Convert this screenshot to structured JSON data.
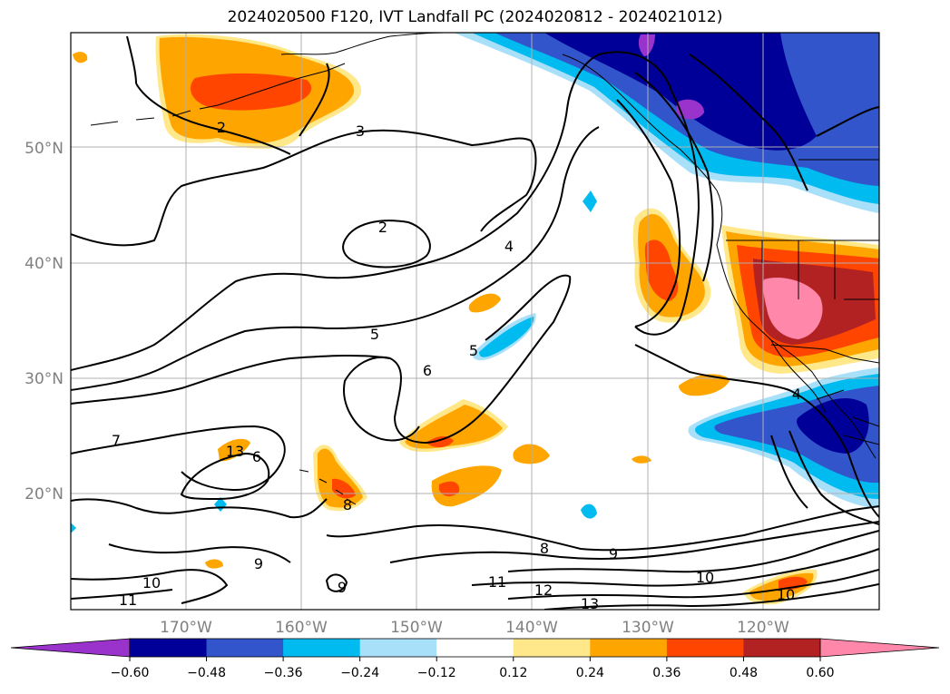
{
  "title": "2024020500 F120, IVT Landfall PC (2024020812 - 2024021012)",
  "colors": {
    "purple": "#9933cc",
    "navy": "#000099",
    "blue": "#3355cc",
    "sky": "#00bbf0",
    "lightblue": "#a8e0fa",
    "white": "#ffffff",
    "yellow": "#ffe88a",
    "orange": "#ffa500",
    "redorange": "#ff4500",
    "firebrick": "#b22222",
    "pink": "#ff88aa",
    "grid": "#b0b0b0",
    "contour": "#000000"
  },
  "map": {
    "lat_labels": [
      "50°N",
      "40°N",
      "30°N",
      "20°N"
    ],
    "lon_labels": [
      "170°W",
      "160°W",
      "150°W",
      "140°W",
      "130°W",
      "120°W"
    ],
    "contour_labels": [
      "2",
      "3",
      "2",
      "4",
      "5",
      "6",
      "5",
      "7",
      "13",
      "6",
      "8",
      "9",
      "9",
      "10",
      "11",
      "8",
      "9",
      "11",
      "12",
      "13",
      "10",
      "10",
      "4"
    ]
  },
  "colorbar": {
    "tick_labels": [
      "−0.60",
      "−0.48",
      "−0.36",
      "−0.24",
      "−0.12",
      "0.12",
      "0.24",
      "0.36",
      "0.48",
      "0.60"
    ],
    "colors": [
      "#000099",
      "#3355cc",
      "#00bbf0",
      "#a8e0fa",
      "#ffffff",
      "#ffe88a",
      "#ffa500",
      "#ff4500",
      "#b22222"
    ],
    "under_color": "#9933cc",
    "over_color": "#ff88aa"
  }
}
